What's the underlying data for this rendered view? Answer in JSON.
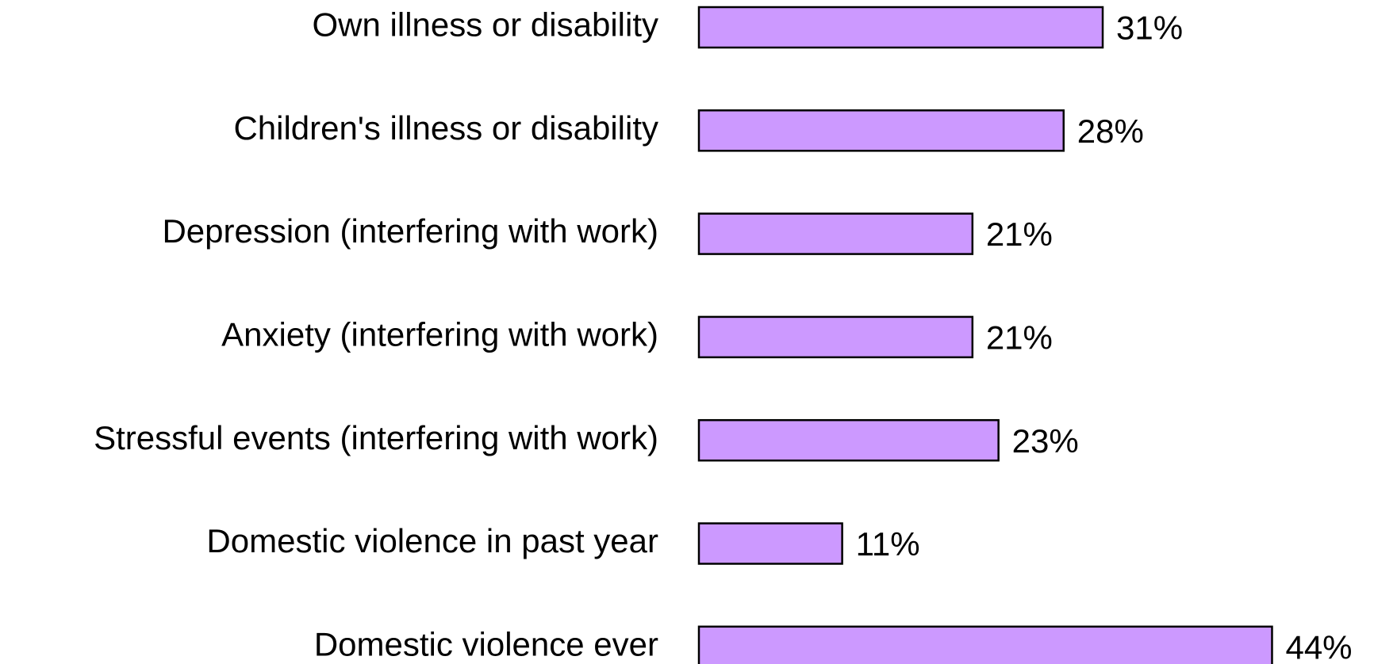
{
  "chart_data": {
    "type": "bar",
    "orientation": "horizontal",
    "categories": [
      "Own illness or disability",
      "Children's illness or disability",
      "Depression (interfering with work)",
      "Anxiety (interfering with work)",
      "Stressful events (interfering with work)",
      "Domestic violence in past year",
      "Domestic violence ever"
    ],
    "values": [
      31,
      28,
      21,
      21,
      23,
      11,
      44
    ],
    "value_labels": [
      "31%",
      "28%",
      "21%",
      "21%",
      "23%",
      "11%",
      "44%"
    ],
    "color": "#cc99ff"
  }
}
